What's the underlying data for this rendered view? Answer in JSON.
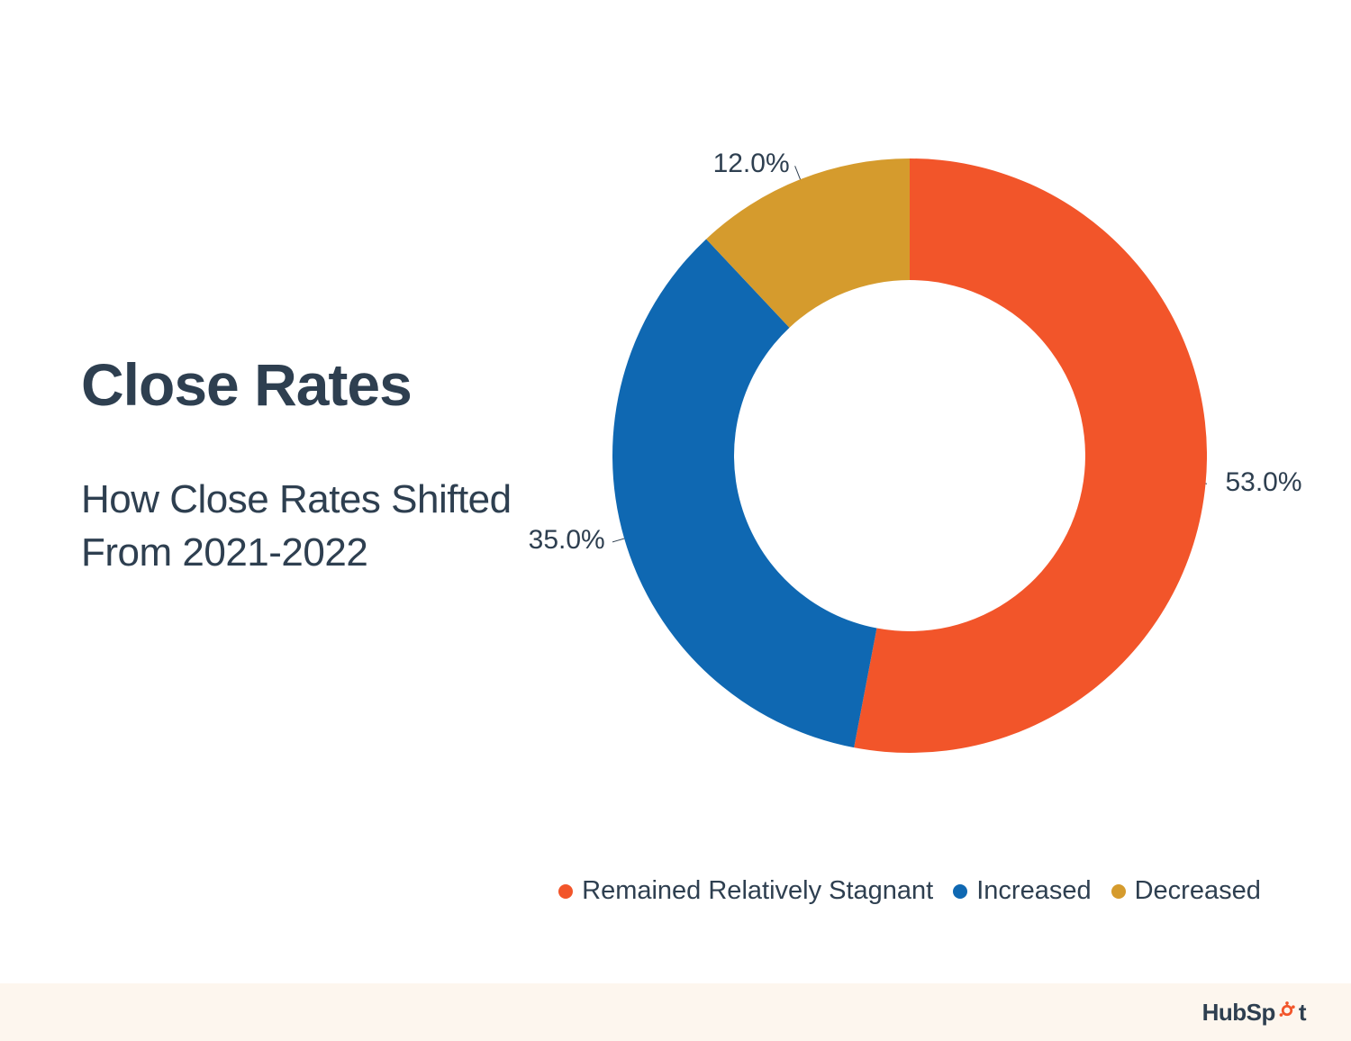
{
  "title": "Close Rates",
  "subtitle": "How Close Rates Shifted From 2021-2022",
  "chart": {
    "type": "donut",
    "outer_radius": 330,
    "inner_radius": 195,
    "start_angle_deg": 0,
    "background_color": "#ffffff",
    "label_fontsize": 30,
    "label_color": "#2e3f50",
    "slices": [
      {
        "key": "stagnant",
        "label": "Remained Relatively Stagnant",
        "value": 53.0,
        "display": "53.0%",
        "color": "#f2552a"
      },
      {
        "key": "increased",
        "label": "Increased",
        "value": 35.0,
        "display": "35.0%",
        "color": "#0f68b2"
      },
      {
        "key": "decreased",
        "label": "Decreased",
        "value": 12.0,
        "display": "12.0%",
        "color": "#d59b2d"
      }
    ]
  },
  "legend": {
    "fontsize": 29,
    "dot_size": 16,
    "text_color": "#2e3f50"
  },
  "footer": {
    "background_color": "#fdf6ee",
    "logo_text_left": "HubSp",
    "logo_text_right": "t",
    "logo_color": "#2e3f50",
    "sprocket_color": "#f2552a"
  },
  "colors": {
    "heading": "#2e3f50",
    "body": "#2e3f50",
    "page_bg": "#ffffff"
  },
  "typography": {
    "title_fontsize": 66,
    "title_weight": 800,
    "subtitle_fontsize": 44,
    "subtitle_weight": 400
  }
}
